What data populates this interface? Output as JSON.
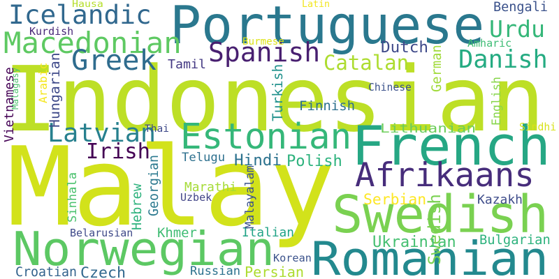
{
  "words": [
    {
      "text": "Malay",
      "color": "#d2e21b"
    },
    {
      "text": "Indonesian",
      "color": "#bddf26"
    },
    {
      "text": "Portuguese",
      "color": "#2a788e"
    },
    {
      "text": "French",
      "color": "#26a784"
    },
    {
      "text": "Romanian",
      "color": "#23898e"
    },
    {
      "text": "Swedish",
      "color": "#7ad151"
    },
    {
      "text": "Norwegian",
      "color": "#5cc863"
    },
    {
      "text": "Afrikaans",
      "color": "#472d7b"
    },
    {
      "text": "Estonian",
      "color": "#35b779"
    },
    {
      "text": "Macedonian",
      "color": "#5ec962"
    },
    {
      "text": "Icelandic",
      "color": "#31688e"
    },
    {
      "text": "Latvian",
      "color": "#27808e"
    },
    {
      "text": "Spanish",
      "color": "#481f70"
    },
    {
      "text": "Danish",
      "color": "#25ab82"
    },
    {
      "text": "Greek",
      "color": "#2f6c8e"
    },
    {
      "text": "Irish",
      "color": "#440154"
    },
    {
      "text": "Urdu",
      "color": "#35b779"
    },
    {
      "text": "Catalan",
      "color": "#addc30"
    },
    {
      "text": "Swedish",
      "color": "#7ad151"
    },
    {
      "text": "Bengali",
      "color": "#3b528b"
    },
    {
      "text": "Dutch",
      "color": "#3e4989"
    },
    {
      "text": "Hindi",
      "color": "#2c728e"
    },
    {
      "text": "Polish",
      "color": "#2db27d"
    },
    {
      "text": "Finnish",
      "color": "#2d708e"
    },
    {
      "text": "Turkish",
      "color": "#21918c"
    },
    {
      "text": "Czech",
      "color": "#31688e"
    },
    {
      "text": "Persian",
      "color": "#addc30"
    },
    {
      "text": "Ukrainian",
      "color": "#44bf70"
    },
    {
      "text": "Bulgarian",
      "color": "#2db27d"
    },
    {
      "text": "Serbian",
      "color": "#fde725"
    },
    {
      "text": "Italian",
      "color": "#20a386"
    },
    {
      "text": "Croatian",
      "color": "#33638d"
    },
    {
      "text": "Russian",
      "color": "#2c728e"
    },
    {
      "text": "Khmer",
      "color": "#3fbc73"
    },
    {
      "text": "Telugu",
      "color": "#2d708e"
    },
    {
      "text": "Tamil",
      "color": "#443983"
    },
    {
      "text": "Kurdish",
      "color": "#482878"
    },
    {
      "text": "Hausa",
      "color": "#b5de2b"
    },
    {
      "text": "Latin",
      "color": "#f1e51d"
    },
    {
      "text": "Burmese",
      "color": "#dde318"
    },
    {
      "text": "Amharic",
      "color": "#3dbc74"
    },
    {
      "text": "German",
      "color": "#a0da39"
    },
    {
      "text": "Chinese",
      "color": "#3b528b"
    },
    {
      "text": "English",
      "color": "#86d549"
    },
    {
      "text": "Lithuanian",
      "color": "#6ccd5a"
    },
    {
      "text": "Sindhi",
      "color": "#d8e219"
    },
    {
      "text": "Thai",
      "color": "#3e4989"
    },
    {
      "text": "Marathi",
      "color": "#a5db36"
    },
    {
      "text": "Uzbek",
      "color": "#414487"
    },
    {
      "text": "Kazakh",
      "color": "#3e4c8a"
    },
    {
      "text": "Belarusian",
      "color": "#3e4989"
    },
    {
      "text": "Korean",
      "color": "#3b528b"
    },
    {
      "text": "Vietnamese",
      "color": "#440154"
    },
    {
      "text": "Malagasy",
      "color": "#4ac16d"
    },
    {
      "text": "Arabic",
      "color": "#f4e61e"
    },
    {
      "text": "Hungarian",
      "color": "#3e4989"
    },
    {
      "text": "Sinhala",
      "color": "#4ac16d"
    },
    {
      "text": "Hebrew",
      "color": "#2db27d"
    },
    {
      "text": "Georgian",
      "color": "#2a788e"
    },
    {
      "text": "Malayalam",
      "color": "#3b528b"
    }
  ]
}
